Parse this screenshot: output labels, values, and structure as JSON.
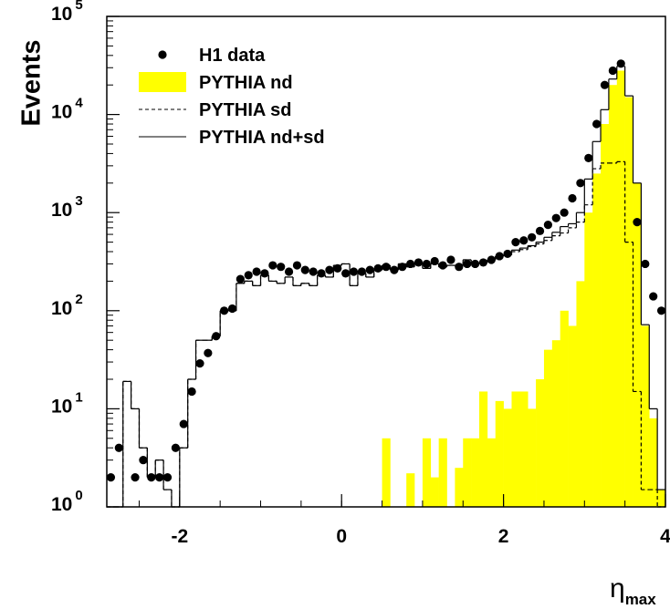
{
  "chart_data": {
    "type": "histogram",
    "y_label": "Events",
    "x_label": "η",
    "x_label_sub": "max",
    "log_y": true,
    "xlim": [
      -2.9,
      4
    ],
    "ylim": [
      1,
      100000
    ],
    "xticks": [
      -2,
      0,
      2,
      4
    ],
    "yticks": [
      {
        "value": 1,
        "label": "10",
        "exp": "0"
      },
      {
        "value": 10,
        "label": "10",
        "exp": "1"
      },
      {
        "value": 100,
        "label": "10",
        "exp": "2"
      },
      {
        "value": 1000,
        "label": "10",
        "exp": "3"
      },
      {
        "value": 10000,
        "label": "10",
        "exp": "4"
      },
      {
        "value": 100000,
        "label": "10",
        "exp": "5"
      }
    ],
    "bins": [
      -2.9,
      -2.8,
      -2.7,
      -2.6,
      -2.5,
      -2.4,
      -2.3,
      -2.2,
      -2.1,
      -2.0,
      -1.9,
      -1.8,
      -1.7,
      -1.6,
      -1.5,
      -1.4,
      -1.3,
      -1.2,
      -1.1,
      -1.0,
      -0.9,
      -0.8,
      -0.7,
      -0.6,
      -0.5,
      -0.4,
      -0.3,
      -0.2,
      -0.1,
      0.0,
      0.1,
      0.2,
      0.3,
      0.4,
      0.5,
      0.6,
      0.7,
      0.8,
      0.9,
      1.0,
      1.1,
      1.2,
      1.3,
      1.4,
      1.5,
      1.6,
      1.7,
      1.8,
      1.9,
      2.0,
      2.1,
      2.2,
      2.3,
      2.4,
      2.5,
      2.6,
      2.7,
      2.8,
      2.9,
      3.0,
      3.1,
      3.2,
      3.3,
      3.4,
      3.5,
      3.6,
      3.7,
      3.8,
      3.9,
      4.0
    ],
    "legend": "top-left",
    "series": [
      {
        "name": "PYTHIA nd",
        "style": "fill",
        "color": "#ffff00",
        "values": [
          0,
          0,
          0,
          0,
          0,
          0,
          0,
          0,
          0,
          0,
          0,
          0,
          0,
          0,
          0,
          0,
          0,
          0,
          0,
          0,
          0,
          0,
          0,
          0,
          0,
          0,
          0,
          0,
          0,
          0,
          0,
          0,
          0,
          0,
          5,
          0,
          0,
          2.2,
          0,
          5,
          2,
          5,
          0,
          2.5,
          5,
          5,
          15,
          5,
          12,
          10,
          15,
          15,
          10,
          20,
          40,
          50,
          100,
          70,
          200,
          1000,
          2500,
          8000,
          20000,
          28000,
          15000,
          2000,
          70,
          8,
          1.5
        ]
      },
      {
        "name": "PYTHIA sd",
        "style": "dashed",
        "color": "#000000",
        "values": [
          0,
          0,
          19,
          10,
          4,
          2,
          3,
          1.5,
          1,
          4,
          20,
          50,
          50,
          55,
          100,
          100,
          190,
          200,
          180,
          230,
          200,
          190,
          220,
          180,
          190,
          180,
          230,
          220,
          290,
          300,
          180,
          240,
          220,
          260,
          290,
          260,
          300,
          280,
          300,
          270,
          300,
          280,
          290,
          290,
          330,
          300,
          310,
          330,
          360,
          370,
          400,
          420,
          450,
          480,
          520,
          580,
          620,
          700,
          800,
          1200,
          2800,
          3200,
          3200,
          3300,
          500,
          15,
          1.5,
          1.5,
          0
        ]
      },
      {
        "name": "PYTHIA nd+sd",
        "style": "solid",
        "color": "#000000",
        "values": [
          0,
          0,
          19,
          10,
          4,
          2,
          3,
          1.5,
          1,
          4,
          20,
          50,
          50,
          55,
          100,
          100,
          190,
          200,
          180,
          230,
          200,
          190,
          220,
          180,
          190,
          180,
          230,
          220,
          290,
          300,
          180,
          240,
          220,
          260,
          290,
          260,
          300,
          280,
          300,
          270,
          300,
          280,
          290,
          290,
          330,
          300,
          310,
          330,
          360,
          370,
          415,
          435,
          460,
          500,
          560,
          630,
          720,
          770,
          1000,
          2200,
          5300,
          11200,
          23000,
          31000,
          15500,
          2000,
          72,
          10,
          1.5
        ]
      },
      {
        "name": "H1 data",
        "style": "points",
        "color": "#000000",
        "values": [
          2,
          4,
          null,
          2,
          3,
          2,
          2,
          2,
          4,
          7,
          15,
          29,
          37,
          55,
          100,
          105,
          210,
          230,
          250,
          240,
          290,
          280,
          250,
          290,
          260,
          250,
          240,
          260,
          270,
          240,
          250,
          250,
          260,
          270,
          280,
          260,
          280,
          300,
          310,
          300,
          320,
          290,
          330,
          280,
          300,
          300,
          310,
          330,
          360,
          380,
          500,
          520,
          560,
          650,
          750,
          880,
          1000,
          1400,
          2000,
          3600,
          8000,
          20000,
          28000,
          33000,
          null,
          800,
          300,
          140,
          100
        ]
      }
    ]
  }
}
